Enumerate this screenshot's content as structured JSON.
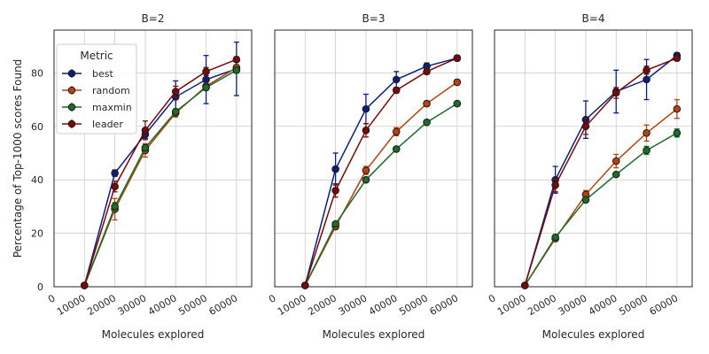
{
  "chart_data": {
    "type": "line",
    "ylabel": "Percentage of Top-1000 scores Found",
    "xlabel": "Molecules explored",
    "xlim": [
      0,
      65000
    ],
    "ylim": [
      0,
      96
    ],
    "x_ticks": [
      0,
      10000,
      20000,
      30000,
      40000,
      50000,
      60000
    ],
    "y_ticks": [
      0,
      20,
      40,
      60,
      80
    ],
    "x_tick_labels": [
      "0",
      "10000",
      "20000",
      "30000",
      "40000",
      "50000",
      "60000"
    ],
    "y_tick_labels": [
      "0",
      "20",
      "40",
      "60",
      "80"
    ],
    "legend": {
      "title": "Metric",
      "position": "upper-left",
      "entries": [
        "best",
        "random",
        "maxmin",
        "leader"
      ]
    },
    "series_colors": {
      "best": "#0a1f7a",
      "random": "#b5420f",
      "maxmin": "#1a6e27",
      "leader": "#7a0a0a"
    },
    "x": [
      10000,
      20000,
      30000,
      40000,
      50000,
      60000
    ],
    "panels": [
      {
        "title": "B=2",
        "series": [
          {
            "name": "best",
            "values": [
              0.5,
              42.5,
              57.0,
              71.0,
              77.5,
              81.5
            ],
            "err": [
              0.3,
              1.2,
              1.5,
              6.0,
              9.0,
              10.0
            ]
          },
          {
            "name": "random",
            "values": [
              0.5,
              29.0,
              51.0,
              65.0,
              75.0,
              82.0
            ],
            "err": [
              0.3,
              4.0,
              2.5,
              1.5,
              1.2,
              1.0
            ]
          },
          {
            "name": "maxmin",
            "values": [
              0.5,
              30.0,
              52.0,
              65.5,
              74.5,
              81.0
            ],
            "err": [
              0.3,
              1.5,
              1.0,
              1.0,
              1.0,
              1.0
            ]
          },
          {
            "name": "leader",
            "values": [
              0.5,
              37.5,
              58.5,
              73.0,
              80.5,
              85.0
            ],
            "err": [
              0.3,
              2.0,
              3.5,
              2.0,
              1.5,
              1.0
            ]
          }
        ]
      },
      {
        "title": "B=3",
        "series": [
          {
            "name": "best",
            "values": [
              0.5,
              44.0,
              66.5,
              77.5,
              82.5,
              85.5
            ],
            "err": [
              0.3,
              6.0,
              5.5,
              3.0,
              1.2,
              1.0
            ]
          },
          {
            "name": "random",
            "values": [
              0.5,
              22.5,
              43.5,
              58.0,
              68.5,
              76.5
            ],
            "err": [
              0.3,
              1.0,
              1.5,
              1.5,
              1.0,
              1.0
            ]
          },
          {
            "name": "maxmin",
            "values": [
              0.5,
              23.5,
              40.0,
              51.5,
              61.5,
              68.5
            ],
            "err": [
              0.3,
              0.8,
              0.8,
              0.8,
              0.8,
              0.8
            ]
          },
          {
            "name": "leader",
            "values": [
              0.5,
              36.0,
              58.5,
              73.5,
              80.5,
              85.5
            ],
            "err": [
              0.3,
              2.5,
              2.5,
              1.0,
              1.0,
              0.8
            ]
          }
        ]
      },
      {
        "title": "B=4",
        "series": [
          {
            "name": "best",
            "values": [
              0.5,
              40.0,
              62.5,
              73.0,
              77.5,
              86.5
            ],
            "err": [
              0.3,
              5.0,
              7.0,
              8.0,
              7.5,
              1.0
            ]
          },
          {
            "name": "random",
            "values": [
              0.5,
              18.0,
              34.5,
              47.0,
              57.5,
              66.5
            ],
            "err": [
              0.3,
              1.0,
              1.5,
              2.5,
              3.0,
              3.5
            ]
          },
          {
            "name": "maxmin",
            "values": [
              0.5,
              18.5,
              32.5,
              42.0,
              51.0,
              57.5
            ],
            "err": [
              0.3,
              0.8,
              1.0,
              0.8,
              1.5,
              1.5
            ]
          },
          {
            "name": "leader",
            "values": [
              0.5,
              38.0,
              60.0,
              72.5,
              81.0,
              85.5
            ],
            "err": [
              0.3,
              2.5,
              3.0,
              2.0,
              1.5,
              1.0
            ]
          }
        ]
      }
    ]
  }
}
